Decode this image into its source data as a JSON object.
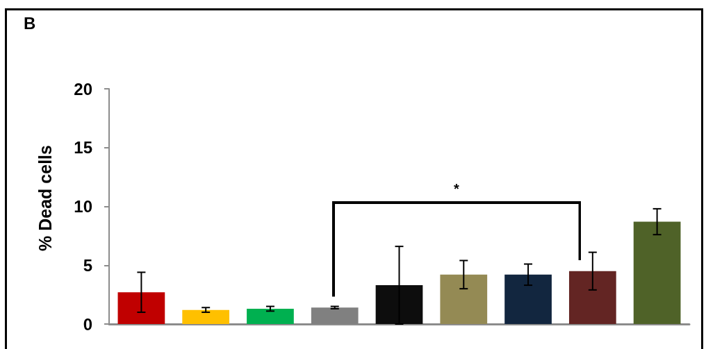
{
  "chart_data": {
    "type": "bar",
    "title": "B",
    "ylabel": "% Dead cells",
    "categories": [
      null,
      null,
      null,
      null,
      null,
      null,
      null,
      null,
      null
    ],
    "values": [
      2.7,
      1.2,
      1.3,
      1.4,
      3.3,
      4.2,
      4.2,
      4.5,
      8.7
    ],
    "errors": [
      1.7,
      0.2,
      0.2,
      0.1,
      3.3,
      1.2,
      0.9,
      1.6,
      1.1
    ],
    "colors": [
      "#c00000",
      "#ffc000",
      "#00b050",
      "#808080",
      "#0d0d0d",
      "#948a54",
      "#12263f",
      "#632523",
      "#4f6228"
    ],
    "ylim": [
      0,
      20
    ],
    "yticks": [
      0,
      5,
      10,
      15,
      20
    ],
    "tick_labels": "y",
    "annotations": [
      "*"
    ]
  }
}
